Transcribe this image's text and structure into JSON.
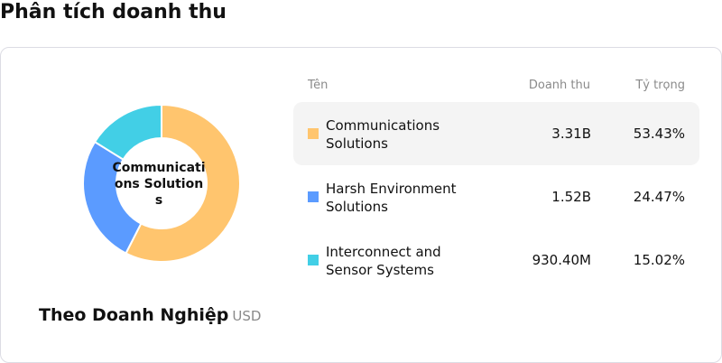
{
  "title": "Phân tích doanh thu",
  "chart": {
    "center_label": "Communications Solutions",
    "subtitle": "Theo Doanh Nghiệp",
    "unit": "USD"
  },
  "table": {
    "headers": {
      "name": "Tên",
      "revenue": "Doanh thu",
      "share": "Tỷ trọng"
    },
    "rows": [
      {
        "name": "Communications Solutions",
        "revenue": "3.31B",
        "share": "53.43%",
        "color": "#FFC56E",
        "selected": true
      },
      {
        "name": "Harsh Environment Solutions",
        "revenue": "1.52B",
        "share": "24.47%",
        "color": "#5B9BFF",
        "selected": false
      },
      {
        "name": "Interconnect and Sensor Systems",
        "revenue": "930.40M",
        "share": "15.02%",
        "color": "#42CFE6",
        "selected": false
      }
    ]
  },
  "chart_data": {
    "type": "pie",
    "categories": [
      "Communications Solutions",
      "Harsh Environment Solutions",
      "Interconnect and Sensor Systems"
    ],
    "values": [
      53.43,
      24.47,
      15.02
    ],
    "colors": [
      "#FFC56E",
      "#5B9BFF",
      "#42CFE6"
    ],
    "donut": true
  }
}
